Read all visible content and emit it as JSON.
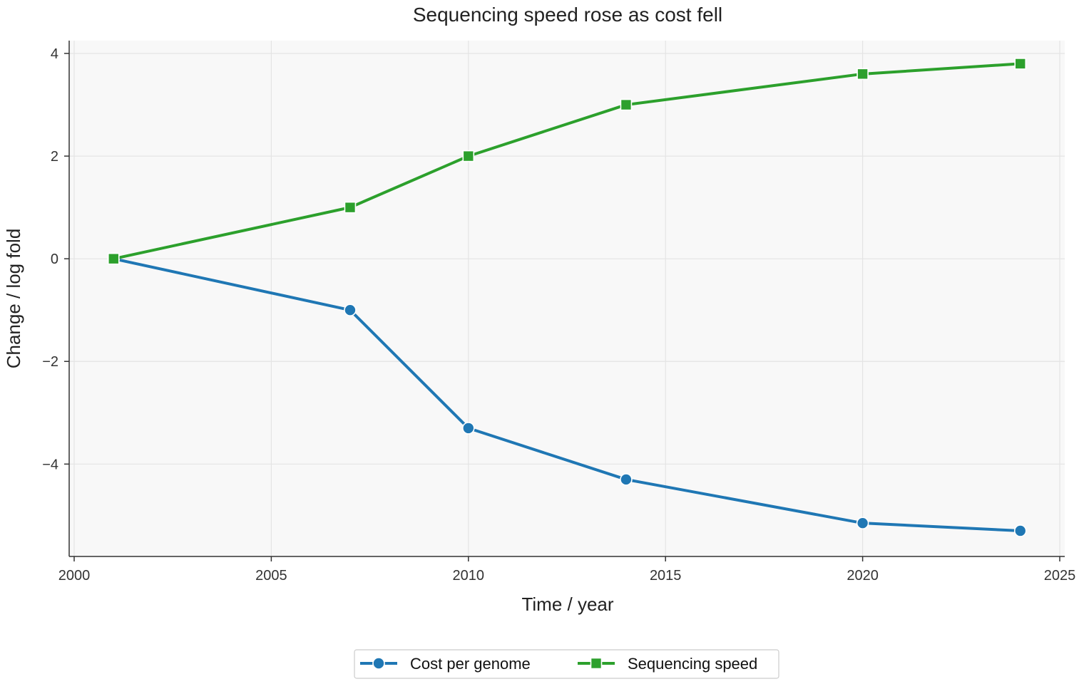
{
  "chart_data": {
    "type": "line",
    "title": "Sequencing speed rose as cost fell",
    "xlabel": "Time / year",
    "ylabel": "Change / log   fold",
    "xlim": [
      2000,
      2025
    ],
    "ylim": [
      -5.8,
      4.25
    ],
    "xticks": [
      2000,
      2005,
      2010,
      2015,
      2020,
      2025
    ],
    "yticks": [
      -4,
      -2,
      0,
      2,
      4
    ],
    "ytick_labels": [
      "−4",
      "−2",
      "0",
      "2",
      "4"
    ],
    "grid": true,
    "legend_position": "bottom-center",
    "series": [
      {
        "name": "Cost per genome",
        "color": "#1f77b4",
        "marker": "circle",
        "x": [
          2001,
          2007,
          2010,
          2014,
          2020,
          2024
        ],
        "y": [
          0,
          -1.0,
          -3.3,
          -4.3,
          -5.15,
          -5.3
        ]
      },
      {
        "name": "Sequencing speed",
        "color": "#2ca02c",
        "marker": "square",
        "x": [
          2001,
          2007,
          2010,
          2014,
          2020,
          2024
        ],
        "y": [
          0,
          1.0,
          2.0,
          3.0,
          3.6,
          3.8
        ]
      }
    ]
  }
}
